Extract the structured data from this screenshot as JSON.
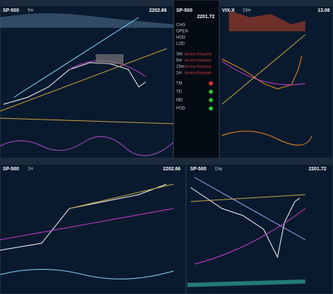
{
  "panels": [
    {
      "symbol": "SP-500",
      "interval": "5m",
      "price": "2202.66"
    },
    {
      "symbol": "VIX-X",
      "interval": "15m",
      "price": "13.08"
    },
    {
      "symbol": "SP-500",
      "interval": "1H",
      "price": "2202.66"
    },
    {
      "symbol": "SP-500",
      "interval": "Day",
      "price": "2201.72"
    }
  ],
  "quote": {
    "symbol": "SP-500",
    "price": "2201.72",
    "rows": [
      "CHG",
      "OPEN",
      "HOD",
      "LOD"
    ],
    "status": [
      {
        "label": "SM",
        "text": "Service Required"
      },
      {
        "label": "5m",
        "text": "Service Required"
      },
      {
        "label": "15m",
        "text": "Service Required"
      },
      {
        "label": "1H",
        "text": "Service Required"
      }
    ],
    "signals": [
      "TM",
      "TD",
      "MD",
      "POD"
    ]
  }
}
